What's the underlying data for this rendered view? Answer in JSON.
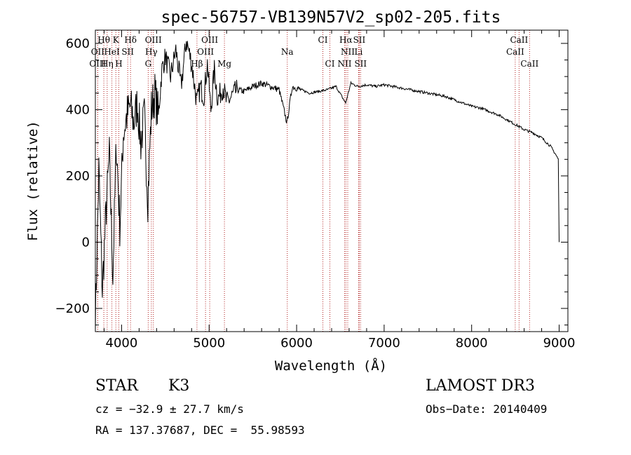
{
  "chart_data": {
    "type": "line",
    "title": "spec-56757-VB139N57V2_sp02-205.fits",
    "xlabel": "Wavelength (Å)",
    "ylabel": "Flux (relative)",
    "xlim": [
      3700,
      9100
    ],
    "ylim": [
      -270,
      640
    ],
    "xticks": [
      4000,
      5000,
      6000,
      7000,
      8000,
      9000
    ],
    "yticks": [
      -200,
      0,
      200,
      400,
      600
    ],
    "grid": false,
    "series": [
      {
        "name": "flux",
        "x": [
          3700,
          3740,
          3780,
          3820,
          3860,
          3900,
          3940,
          3980,
          4020,
          4060,
          4100,
          4140,
          4180,
          4220,
          4260,
          4300,
          4340,
          4380,
          4420,
          4460,
          4500,
          4560,
          4620,
          4680,
          4740,
          4800,
          4860,
          4900,
          4940,
          4980,
          5020,
          5060,
          5100,
          5160,
          5200,
          5260,
          5320,
          5400,
          5500,
          5600,
          5700,
          5800,
          5890,
          5950,
          6050,
          6150,
          6250,
          6350,
          6450,
          6560,
          6620,
          6700,
          6800,
          6900,
          7000,
          7100,
          7200,
          7300,
          7400,
          7500,
          7600,
          7700,
          7800,
          7900,
          8000,
          8100,
          8200,
          8300,
          8400,
          8500,
          8600,
          8700,
          8800,
          8900,
          8960,
          8990,
          9000
        ],
        "y": [
          -250,
          220,
          -150,
          80,
          260,
          -100,
          300,
          50,
          330,
          380,
          410,
          360,
          420,
          300,
          380,
          130,
          400,
          450,
          380,
          520,
          560,
          500,
          580,
          470,
          610,
          540,
          420,
          470,
          440,
          540,
          400,
          520,
          430,
          470,
          420,
          440,
          460,
          455,
          470,
          480,
          470,
          460,
          360,
          470,
          460,
          450,
          455,
          460,
          470,
          420,
          480,
          470,
          475,
          470,
          475,
          470,
          465,
          460,
          455,
          450,
          445,
          440,
          430,
          420,
          410,
          405,
          395,
          385,
          370,
          355,
          340,
          330,
          315,
          290,
          265,
          250,
          0
        ]
      }
    ],
    "lines": [
      {
        "name": "Hθ",
        "x": 3797,
        "row": 0
      },
      {
        "name": "K",
        "x": 3934,
        "row": 0
      },
      {
        "name": "Hδ",
        "x": 4102,
        "row": 0
      },
      {
        "name": "OIII",
        "x": 4363,
        "row": 0
      },
      {
        "name": "OIII",
        "x": 5007,
        "row": 0
      },
      {
        "name": "CI",
        "x": 6300,
        "row": 0
      },
      {
        "name": "Hα",
        "x": 6563,
        "row": 0
      },
      {
        "name": "SII",
        "x": 6716,
        "row": 0
      },
      {
        "name": "CaII",
        "x": 8542,
        "row": 0
      },
      {
        "name": "OII",
        "x": 3727,
        "row": 1
      },
      {
        "name": "HeI",
        "x": 3889,
        "row": 1
      },
      {
        "name": "SII",
        "x": 4070,
        "row": 1
      },
      {
        "name": "Hγ",
        "x": 4340,
        "row": 1
      },
      {
        "name": "OIII",
        "x": 4959,
        "row": 1
      },
      {
        "name": "Na",
        "x": 5893,
        "row": 1
      },
      {
        "name": "NII",
        "x": 6584,
        "row": 1
      },
      {
        "name": "Li",
        "x": 6708,
        "row": 1
      },
      {
        "name": "CaII",
        "x": 8498,
        "row": 1
      },
      {
        "name": "OIII",
        "x": 3727,
        "row": 2
      },
      {
        "name": "Hη",
        "x": 3835,
        "row": 2
      },
      {
        "name": "H",
        "x": 3968,
        "row": 2
      },
      {
        "name": "G",
        "x": 4304,
        "row": 2
      },
      {
        "name": "Hβ",
        "x": 4861,
        "row": 2
      },
      {
        "name": "Mg",
        "x": 5175,
        "row": 2
      },
      {
        "name": "CI",
        "x": 6380,
        "row": 2
      },
      {
        "name": "NII",
        "x": 6548,
        "row": 2
      },
      {
        "name": "SII",
        "x": 6731,
        "row": 2
      },
      {
        "name": "CaII",
        "x": 8662,
        "row": 2
      }
    ]
  },
  "info": {
    "object_type": "STAR",
    "subclass": "K3",
    "survey": "LAMOST DR3",
    "cz": "cz = −32.9 ± 27.7 km/s",
    "obs_date": "Obs−Date: 20140409",
    "coords": "RA = 137.37687, DEC =  55.98593"
  },
  "colors": {
    "spectrum": "#000000",
    "line_markers": "#b22222",
    "axes": "#000000"
  }
}
